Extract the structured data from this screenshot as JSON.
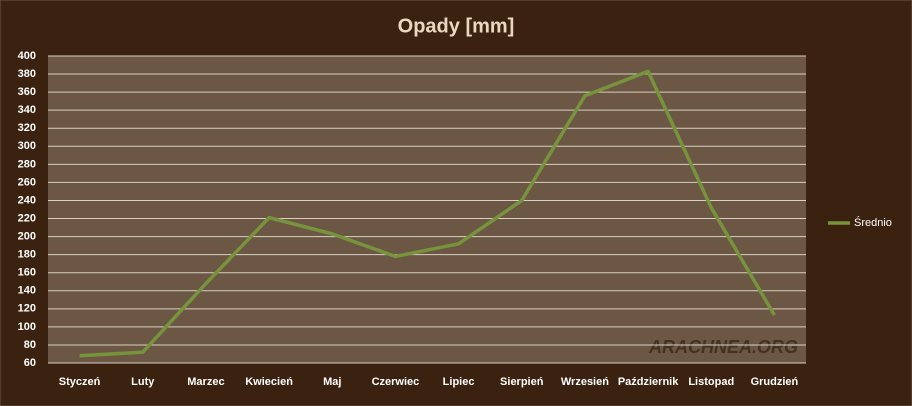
{
  "chart_data": {
    "type": "line",
    "title": "Opady [mm]",
    "categories": [
      "Styczeń",
      "Luty",
      "Marzec",
      "Kwiecień",
      "Maj",
      "Czerwiec",
      "Lipiec",
      "Sierpień",
      "Wrzesień",
      "Październik",
      "Listopad",
      "Grudzień"
    ],
    "series": [
      {
        "name": "Średnio",
        "color": "#77933c",
        "values": [
          68,
          72,
          148,
          221,
          203,
          178,
          192,
          240,
          356,
          383,
          232,
          113
        ]
      }
    ],
    "ylim": [
      60,
      400
    ],
    "yticks": [
      60,
      80,
      100,
      120,
      140,
      160,
      180,
      200,
      220,
      240,
      260,
      280,
      300,
      320,
      340,
      360,
      380,
      400
    ],
    "grid": true,
    "legend": "right",
    "watermark": "ARACHNEA.ORG"
  }
}
